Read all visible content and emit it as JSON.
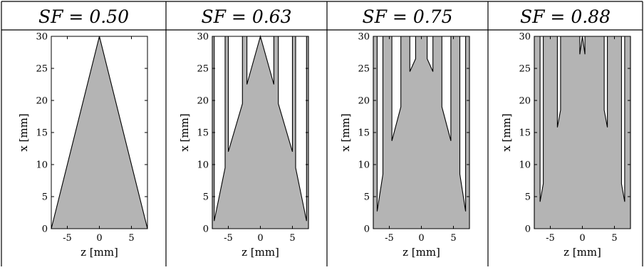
{
  "table": {
    "headers": [
      "SF = 0.50",
      "SF = 0.63",
      "SF = 0.75",
      "SF = 0.88"
    ]
  },
  "chart_data": [
    {
      "type": "area",
      "header": "SF = 0.50",
      "xlabel": "z [mm]",
      "ylabel": "x [mm]",
      "xlim": [
        -7.5,
        7.5
      ],
      "ylim": [
        0,
        30
      ],
      "xticks": [
        -5,
        0,
        5
      ],
      "yticks": [
        0,
        5,
        10,
        15,
        20,
        25,
        30
      ],
      "fill_color": "#b4b4b4",
      "outline": [
        [
          -7.5,
          0
        ],
        [
          0,
          30
        ],
        [
          7.5,
          0
        ]
      ]
    },
    {
      "type": "area",
      "header": "SF = 0.63",
      "xlabel": "z [mm]",
      "ylabel": "x [mm]",
      "xlim": [
        -7.5,
        7.5
      ],
      "ylim": [
        0,
        30
      ],
      "xticks": [
        -5,
        0,
        5
      ],
      "yticks": [
        0,
        5,
        10,
        15,
        20,
        25,
        30
      ],
      "fill_color": "#b4b4b4",
      "outline": [
        [
          -7.5,
          0
        ],
        [
          -7.5,
          30
        ],
        [
          -7.2,
          30
        ],
        [
          -7.2,
          1.2
        ],
        [
          -5.5,
          9.5
        ],
        [
          -5.5,
          30
        ],
        [
          -5.0,
          30
        ],
        [
          -5.0,
          12
        ],
        [
          -2.8,
          19.5
        ],
        [
          -2.8,
          30
        ],
        [
          -2.1,
          30
        ],
        [
          -2.1,
          22.5
        ],
        [
          0,
          30
        ],
        [
          2.1,
          22.5
        ],
        [
          2.1,
          30
        ],
        [
          2.8,
          30
        ],
        [
          2.8,
          19.5
        ],
        [
          5.0,
          12
        ],
        [
          5.0,
          30
        ],
        [
          5.5,
          30
        ],
        [
          5.5,
          9.5
        ],
        [
          7.2,
          1.2
        ],
        [
          7.2,
          30
        ],
        [
          7.5,
          30
        ],
        [
          7.5,
          0
        ]
      ]
    },
    {
      "type": "area",
      "header": "SF = 0.75",
      "xlabel": "z [mm]",
      "ylabel": "x [mm]",
      "xlim": [
        -7.5,
        7.5
      ],
      "ylim": [
        0,
        30
      ],
      "xticks": [
        -5,
        0,
        5
      ],
      "yticks": [
        0,
        5,
        10,
        15,
        20,
        25,
        30
      ],
      "fill_color": "#b4b4b4",
      "outline": [
        [
          -7.5,
          0
        ],
        [
          -7.5,
          30
        ],
        [
          -6.9,
          30
        ],
        [
          -6.9,
          2.7
        ],
        [
          -6.0,
          8.5
        ],
        [
          -6.0,
          30
        ],
        [
          -4.6,
          30
        ],
        [
          -4.6,
          13.7
        ],
        [
          -3.2,
          19
        ],
        [
          -3.2,
          30
        ],
        [
          -1.8,
          30
        ],
        [
          -1.8,
          24.5
        ],
        [
          -0.9,
          26.5
        ],
        [
          -0.9,
          30
        ],
        [
          -0.4,
          30
        ],
        [
          0,
          30
        ],
        [
          0.4,
          30
        ],
        [
          0.9,
          30
        ],
        [
          0.9,
          26.5
        ],
        [
          1.8,
          24.5
        ],
        [
          1.8,
          30
        ],
        [
          3.2,
          30
        ],
        [
          3.2,
          19
        ],
        [
          4.6,
          13.7
        ],
        [
          4.6,
          30
        ],
        [
          6.0,
          30
        ],
        [
          6.0,
          8.5
        ],
        [
          6.9,
          2.7
        ],
        [
          6.9,
          30
        ],
        [
          7.5,
          30
        ],
        [
          7.5,
          0
        ]
      ]
    },
    {
      "type": "area",
      "header": "SF = 0.88",
      "xlabel": "z [mm]",
      "ylabel": "x [mm]",
      "xlim": [
        -7.5,
        7.5
      ],
      "ylim": [
        0,
        30
      ],
      "xticks": [
        -5,
        0,
        5
      ],
      "yticks": [
        0,
        5,
        10,
        15,
        20,
        25,
        30
      ],
      "fill_color": "#b4b4b4",
      "outline": [
        [
          -7.5,
          0
        ],
        [
          -7.5,
          30
        ],
        [
          -6.6,
          30
        ],
        [
          -6.6,
          4.2
        ],
        [
          -6.1,
          7
        ],
        [
          -6.1,
          30
        ],
        [
          -4.6,
          30
        ],
        [
          -4.6,
          30
        ],
        [
          -3.9,
          30
        ],
        [
          -3.9,
          15.8
        ],
        [
          -3.4,
          18.5
        ],
        [
          -3.4,
          30
        ],
        [
          -1.5,
          30
        ],
        [
          -0.4,
          30
        ],
        [
          -0.4,
          27.2
        ],
        [
          0,
          30
        ],
        [
          0.4,
          27.2
        ],
        [
          0.4,
          30
        ],
        [
          1.5,
          30
        ],
        [
          3.4,
          30
        ],
        [
          3.4,
          18.5
        ],
        [
          3.9,
          15.8
        ],
        [
          3.9,
          30
        ],
        [
          4.6,
          30
        ],
        [
          6.1,
          30
        ],
        [
          6.1,
          7
        ],
        [
          6.6,
          4.2
        ],
        [
          6.6,
          30
        ],
        [
          7.5,
          30
        ],
        [
          7.5,
          0
        ]
      ]
    }
  ]
}
